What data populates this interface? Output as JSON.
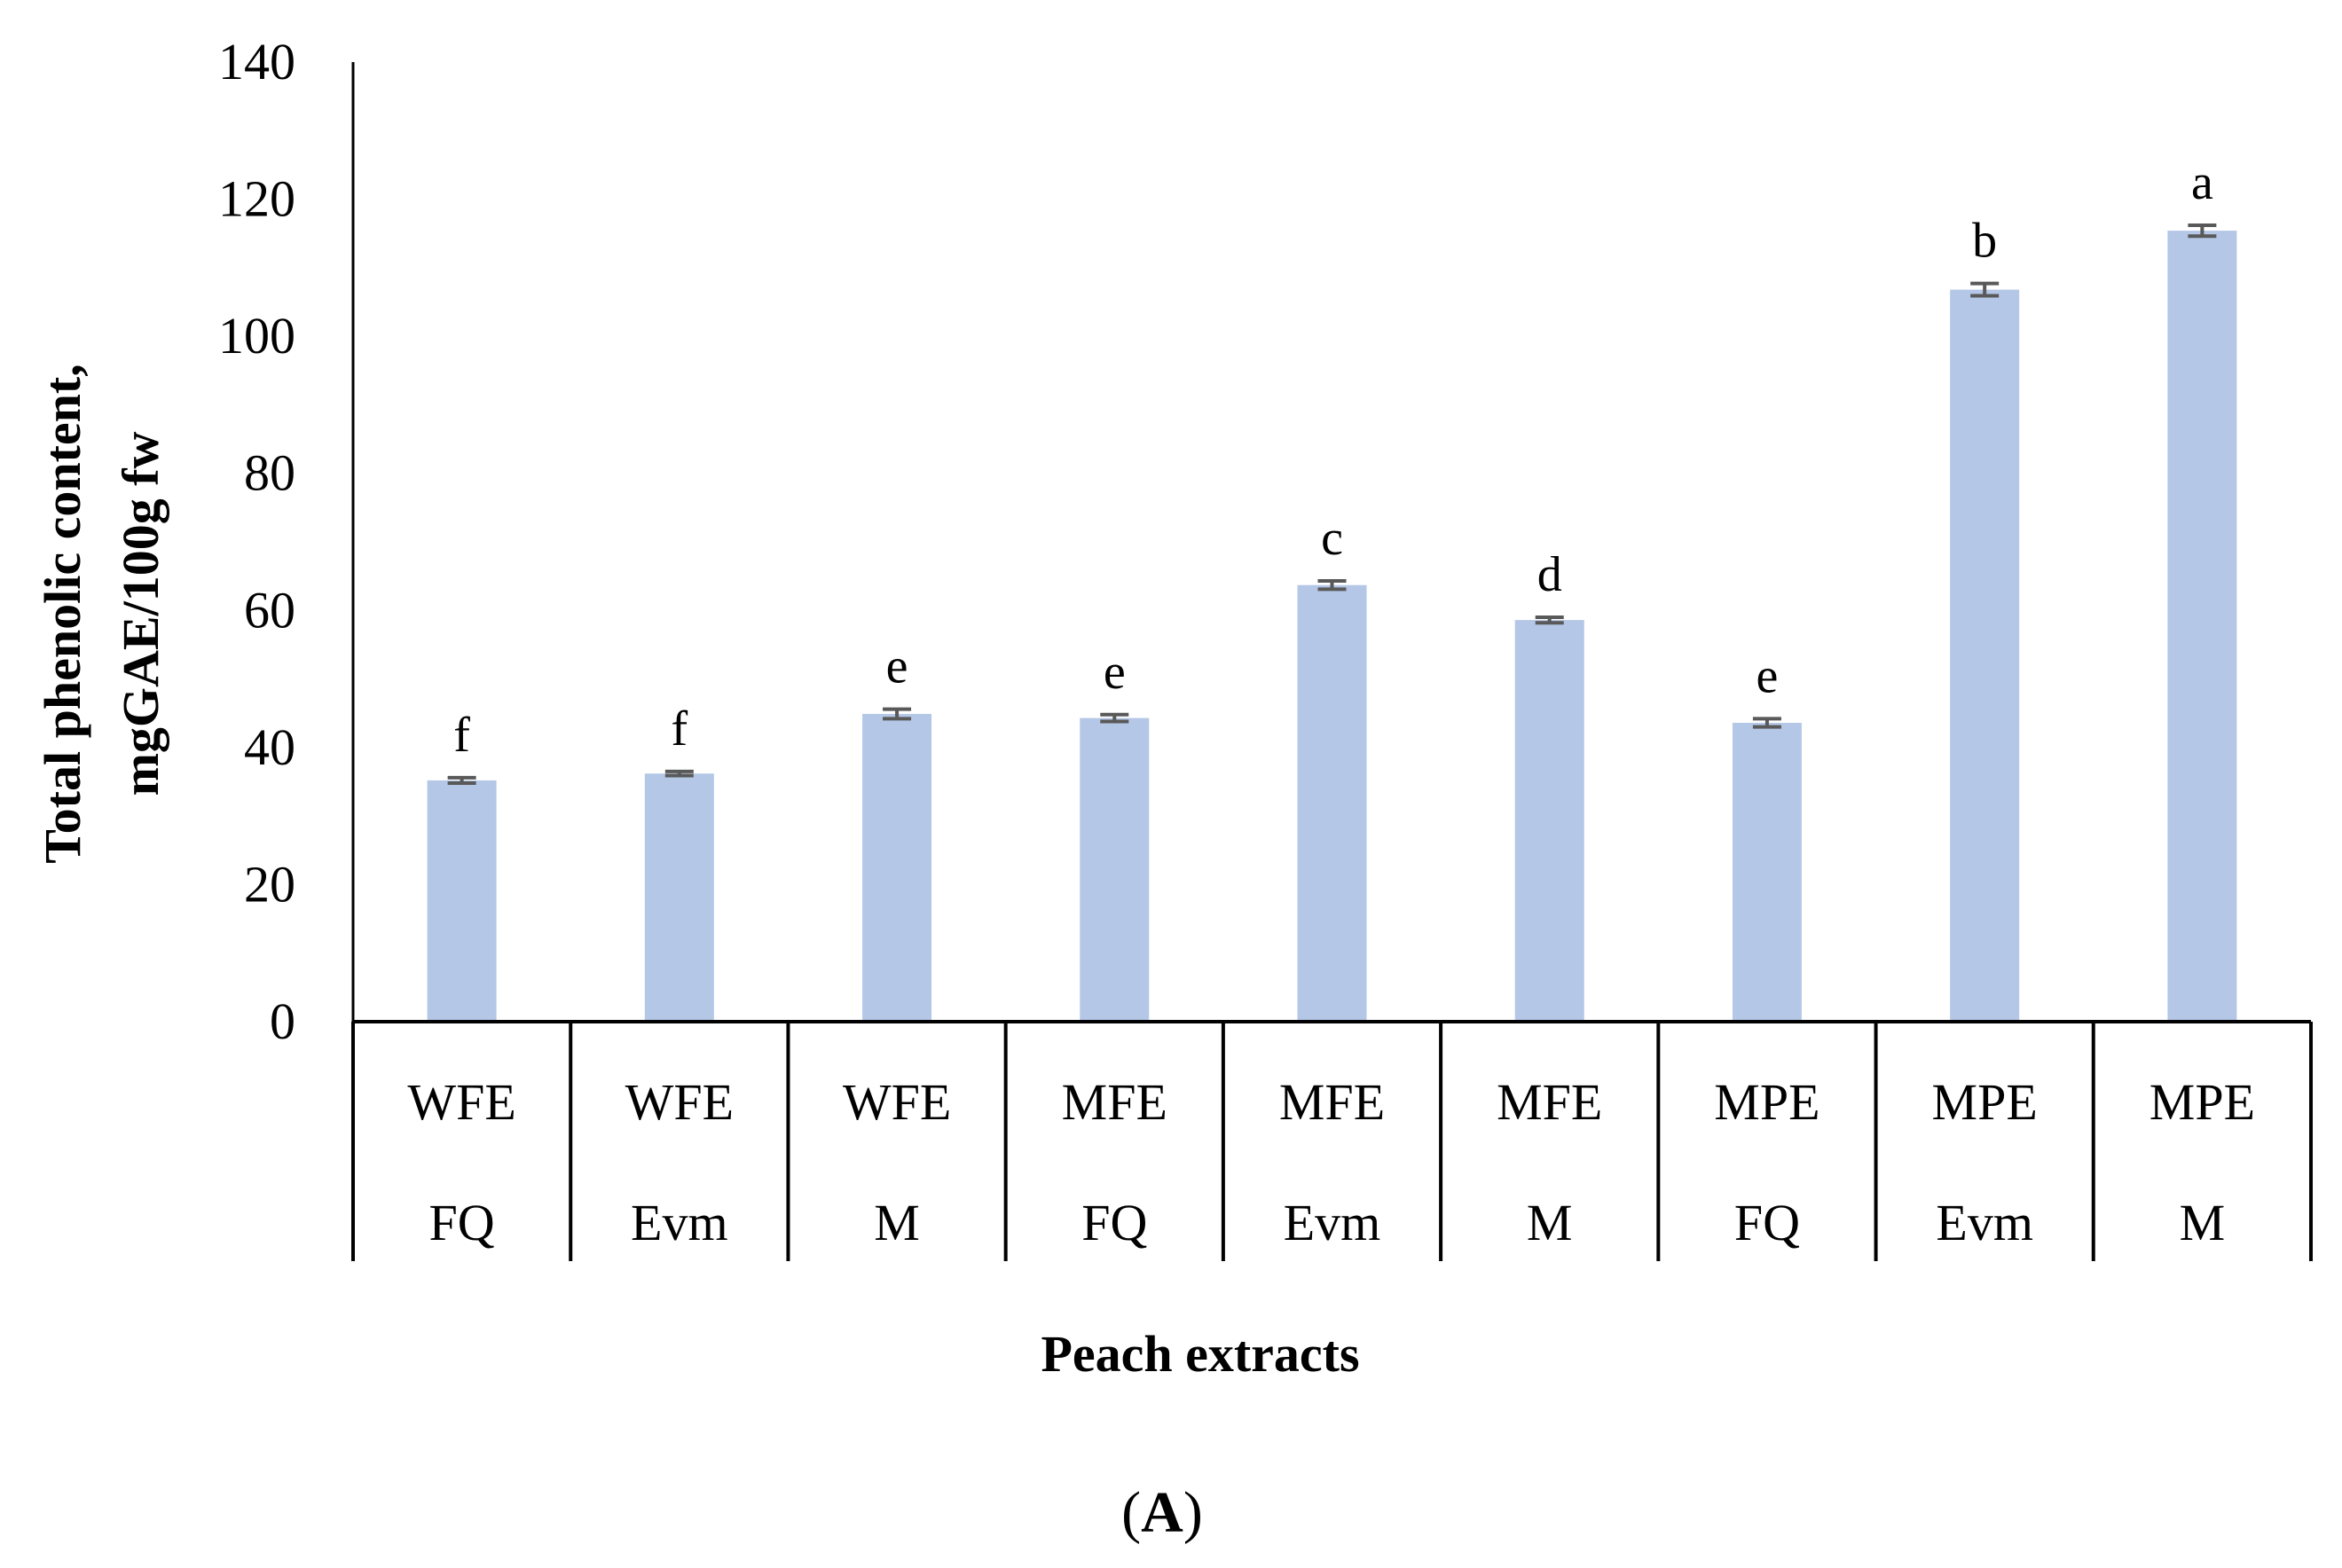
{
  "chart_data": {
    "type": "bar",
    "ylabel_line1": "Total phenolic content,",
    "ylabel_line2": "mgGAE/100g fw",
    "xlabel": "Peach extracts",
    "caption_open": "(",
    "caption_letter": "A",
    "caption_close": ")",
    "ylim": [
      0,
      140
    ],
    "yticks": [
      0,
      20,
      40,
      60,
      80,
      100,
      120,
      140
    ],
    "categories": [
      {
        "line1": "WFE",
        "line2": "FQ"
      },
      {
        "line1": "WFE",
        "line2": "Evm"
      },
      {
        "line1": "WFE",
        "line2": "M"
      },
      {
        "line1": "MFE",
        "line2": "FQ"
      },
      {
        "line1": "MFE",
        "line2": "Evm"
      },
      {
        "line1": "MFE",
        "line2": "M"
      },
      {
        "line1": "MPE",
        "line2": "FQ"
      },
      {
        "line1": "MPE",
        "line2": "Evm"
      },
      {
        "line1": "MPE",
        "line2": "M"
      }
    ],
    "values": [
      35.2,
      36.2,
      44.9,
      44.3,
      63.7,
      58.6,
      43.6,
      106.8,
      115.4
    ],
    "errors": [
      0.4,
      0.3,
      0.7,
      0.5,
      0.6,
      0.4,
      0.6,
      0.9,
      0.8
    ],
    "significance": [
      "f",
      "f",
      "e",
      "e",
      "c",
      "d",
      "e",
      "b",
      "a"
    ],
    "bar_color": "#b4c7e7",
    "error_color": "#595959",
    "axis_color": "#000000"
  }
}
